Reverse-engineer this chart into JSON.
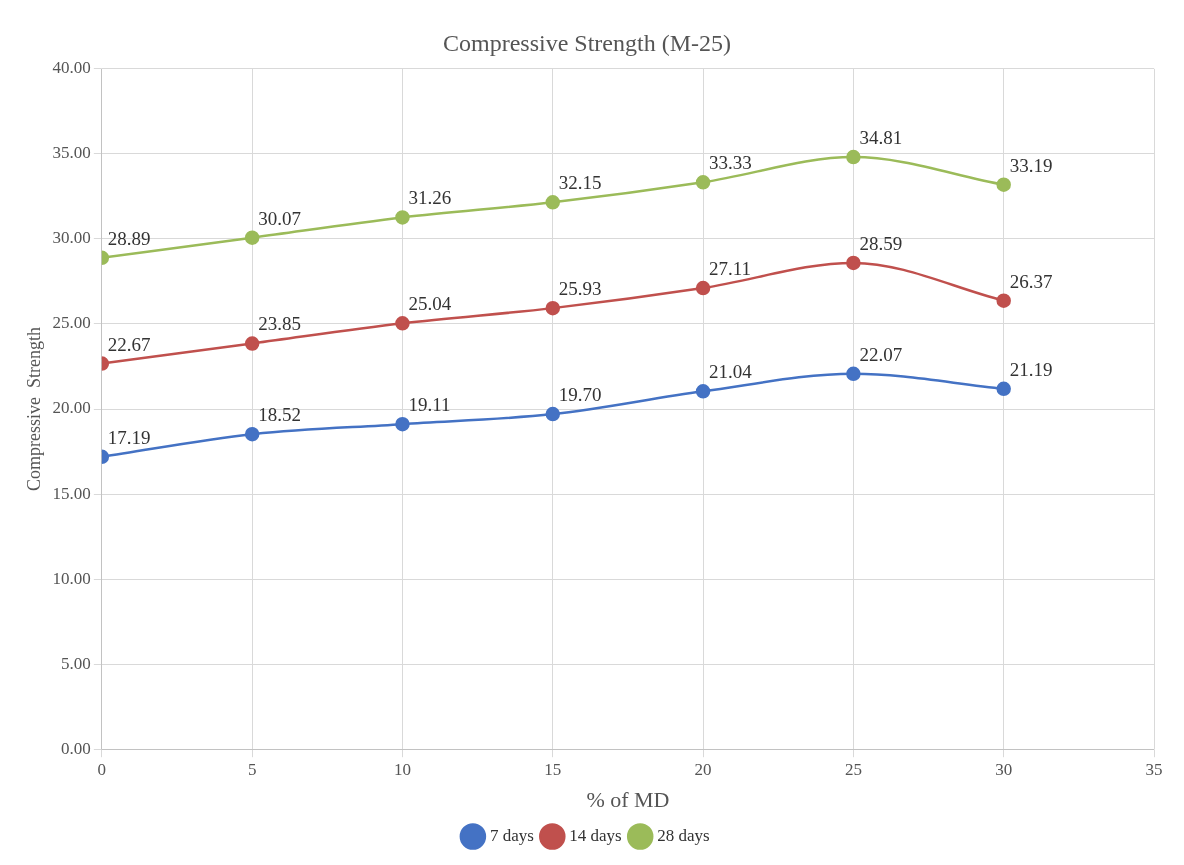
{
  "chart_data": {
    "type": "line",
    "title": "Compressive Strength (M-25)",
    "xlabel": "% of MD",
    "ylabel": "Compressive  Strength",
    "x": [
      0,
      5,
      10,
      15,
      20,
      25,
      30
    ],
    "series": [
      {
        "name": "7 days",
        "color": "#4472c4",
        "values": [
          17.19,
          18.52,
          19.11,
          19.7,
          21.04,
          22.07,
          21.19
        ],
        "value_labels": [
          "17.19",
          "18.52",
          "19.11",
          "19.70",
          "21.04",
          "22.07",
          "21.19"
        ]
      },
      {
        "name": "14 days",
        "color": "#c0504d",
        "values": [
          22.67,
          23.85,
          25.04,
          25.93,
          27.11,
          28.59,
          26.37
        ],
        "value_labels": [
          "22.67",
          "23.85",
          "25.04",
          "25.93",
          "27.11",
          "28.59",
          "26.37"
        ]
      },
      {
        "name": "28 days",
        "color": "#9bbb59",
        "values": [
          28.89,
          30.07,
          31.26,
          32.15,
          33.33,
          34.81,
          33.19
        ],
        "value_labels": [
          "28.89",
          "30.07",
          "31.26",
          "32.15",
          "33.33",
          "34.81",
          "33.19"
        ]
      }
    ],
    "xlim": [
      0,
      35
    ],
    "xticks": [
      0,
      5,
      10,
      15,
      20,
      25,
      30,
      35
    ],
    "ylim": [
      0,
      40
    ],
    "yticks": [
      {
        "value": 0,
        "label": "0.00"
      },
      {
        "value": 5,
        "label": "5.00"
      },
      {
        "value": 10,
        "label": "10.00"
      },
      {
        "value": 15,
        "label": "15.00"
      },
      {
        "value": 20,
        "label": "20.00"
      },
      {
        "value": 25,
        "label": "25.00"
      },
      {
        "value": 30,
        "label": "30.00"
      },
      {
        "value": 35,
        "label": "35.00"
      },
      {
        "value": 40,
        "label": "40.00"
      }
    ],
    "grid": true,
    "legend": "bottom",
    "marker": "circle",
    "line_style": "solid"
  }
}
